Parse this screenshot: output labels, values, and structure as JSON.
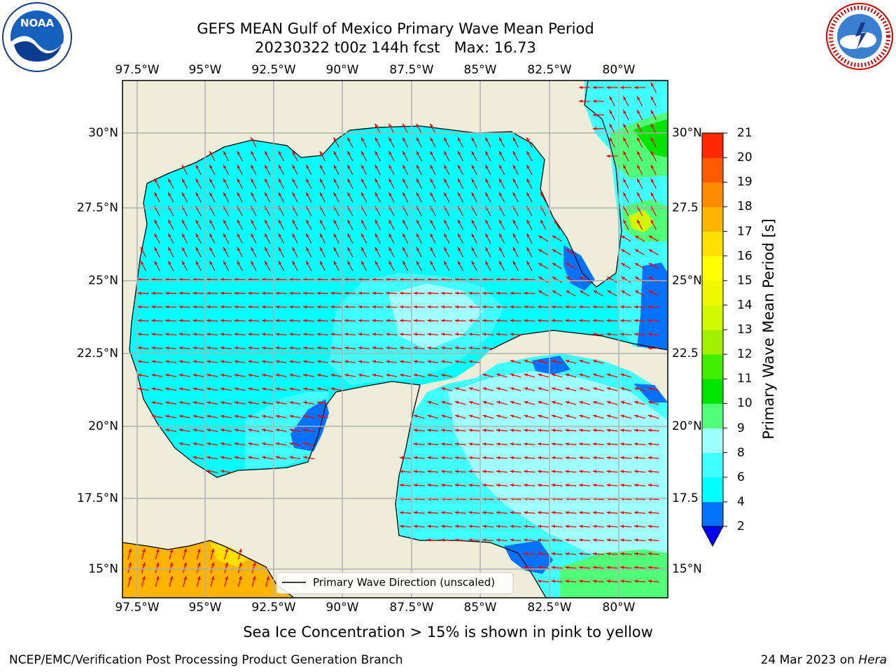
{
  "header": {
    "title_line1": "GEFS MEAN Gulf of Mexico Primary Wave Mean Period",
    "title_line2": "20230322 t00z 144h fcst   Max: 16.73"
  },
  "logos": {
    "noaa": {
      "text": "NOAA",
      "ring": "NATIONAL OCEANIC AND ATMOSPHERIC ADMINISTRATION · U.S. DEPARTMENT OF COMMERCE"
    },
    "nws": {
      "ring": "NATIONAL WEATHER SERVICE"
    }
  },
  "map": {
    "lon_labels": [
      "97.5°W",
      "95°W",
      "92.5°W",
      "90°W",
      "87.5°W",
      "85°W",
      "82.5°W",
      "80°W"
    ],
    "lat_labels_left": [
      "30°N",
      "27.5°N",
      "25°N",
      "22.5°N",
      "20°N",
      "17.5°N",
      "15°N"
    ],
    "lat_labels_right": [
      "30°N",
      "27.5",
      "25°N",
      "22.5",
      "20°N",
      "17.5",
      "15°N"
    ],
    "legend_label": "Primary Wave Direction (unscaled)",
    "colors": {
      "land": "#efedda",
      "ocean_4_6": "#00ffff",
      "ocean_6_8": "#40ffff",
      "ocean_8_9": "#a0ffff",
      "arrow": "#ff0000",
      "grid": "#b0b0b0"
    }
  },
  "colorbar": {
    "label": "Primary Wave Mean Period [s]",
    "ticks": [
      "2",
      "4",
      "6",
      "8",
      "9",
      "10",
      "11",
      "12",
      "13",
      "14",
      "15",
      "16",
      "17",
      "18",
      "19",
      "20",
      "21"
    ],
    "colors": [
      "#0072ff",
      "#00ffff",
      "#40ffff",
      "#a0ffff",
      "#50ff78",
      "#00e400",
      "#40ee00",
      "#a0f000",
      "#d0f800",
      "#f0f800",
      "#ffff00",
      "#ffe000",
      "#ffb400",
      "#ff8c00",
      "#ff5a00",
      "#ff2800"
    ],
    "under_color": "#0000ff"
  },
  "notes": {
    "sea_ice": "Sea Ice Concentration > 15% is shown in pink to yellow"
  },
  "footer": {
    "left": "NCEP/EMC/Verification Post Processing Product Generation Branch",
    "right_date": "24 Mar 2023 on",
    "right_host": "Hera"
  }
}
